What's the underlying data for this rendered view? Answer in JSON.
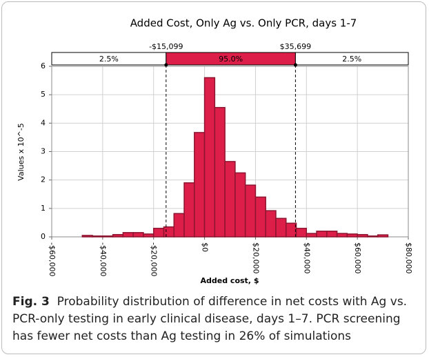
{
  "chart_data": {
    "type": "histogram",
    "title": "Added Cost, Only Ag vs. Only PCR, days 1-7",
    "x_label": "Added cost, $",
    "y_label": "Values x 10^-5",
    "bins": [
      -48000,
      -44000,
      -40000,
      -36000,
      -32000,
      -28000,
      -24000,
      -20000,
      -16000,
      -12000,
      -8000,
      -4000,
      0,
      4000,
      8000,
      12000,
      16000,
      20000,
      24000,
      28000,
      32000,
      36000,
      40000,
      44000,
      48000,
      52000,
      56000,
      60000,
      64000,
      68000,
      72000
    ],
    "values": [
      0.05,
      0.03,
      0.03,
      0.08,
      0.15,
      0.15,
      0.1,
      0.3,
      0.35,
      0.82,
      1.9,
      3.67,
      5.6,
      4.55,
      2.65,
      2.25,
      1.82,
      1.4,
      0.92,
      0.65,
      0.48,
      0.3,
      0.12,
      0.2,
      0.2,
      0.12,
      0.1,
      0.08,
      0.03,
      0.07
    ],
    "color": "#dc1e48",
    "edge_color": "#8c1530",
    "delimiters": [
      {
        "value": -15099,
        "label": "-$15,099"
      },
      {
        "value": 35699,
        "label": "$35,699"
      }
    ],
    "band_values": [
      2.5,
      95.0,
      2.5
    ],
    "band_value_labels": [
      "2.5%",
      "95.0%",
      "2.5%"
    ],
    "xlim": [
      -60000,
      80000
    ],
    "xticks": [
      {
        "value": -60000,
        "label": "-$60,000"
      },
      {
        "value": -40000,
        "label": "-$40,000"
      },
      {
        "value": -20000,
        "label": "-$20,000"
      },
      {
        "value": 0,
        "label": "$0"
      },
      {
        "value": 20000,
        "label": "$20,000"
      },
      {
        "value": 40000,
        "label": "$40,000"
      },
      {
        "value": 60000,
        "label": "$60,000"
      },
      {
        "value": 80000,
        "label": "$80,000"
      }
    ],
    "ylim": [
      0,
      6
    ],
    "yticks": [
      0,
      1,
      2,
      3,
      4,
      5,
      6
    ],
    "grid": true
  },
  "caption": {
    "label": "Fig. 3",
    "text": "Probability distribution of difference in net costs with Ag vs. PCR-only testing in early clinical disease, days 1–7. PCR screening has fewer net costs than Ag testing in 26% of simulations"
  }
}
